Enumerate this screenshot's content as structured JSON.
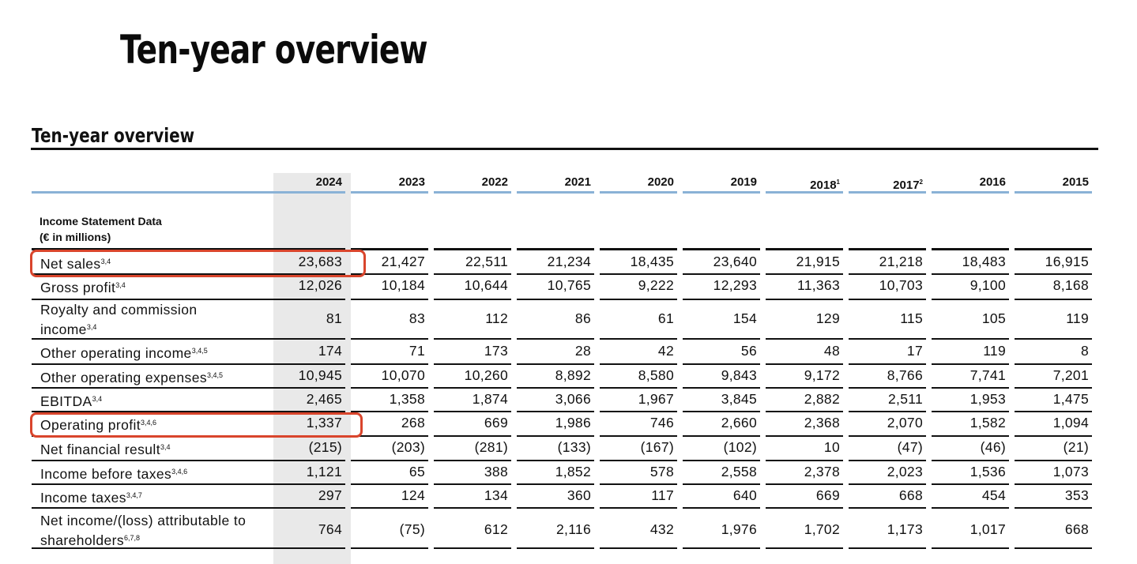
{
  "page": {
    "title": "Ten-year overview"
  },
  "table": {
    "caption": "Ten-year overview",
    "section_title": "Income Statement Data",
    "section_unit": "(€ in millions)",
    "years": [
      {
        "label": "2024",
        "note": ""
      },
      {
        "label": "2023",
        "note": ""
      },
      {
        "label": "2022",
        "note": ""
      },
      {
        "label": "2021",
        "note": ""
      },
      {
        "label": "2020",
        "note": ""
      },
      {
        "label": "2019",
        "note": ""
      },
      {
        "label": "2018",
        "note": "1"
      },
      {
        "label": "2017",
        "note": "2"
      },
      {
        "label": "2016",
        "note": ""
      },
      {
        "label": "2015",
        "note": ""
      }
    ],
    "rows": [
      {
        "label": "Net sales",
        "notes": "3,4",
        "values": [
          "23,683",
          "21,427",
          "22,511",
          "21,234",
          "18,435",
          "23,640",
          "21,915",
          "21,218",
          "18,483",
          "16,915"
        ]
      },
      {
        "label": "Gross profit",
        "notes": "3,4",
        "values": [
          "12,026",
          "10,184",
          "10,644",
          "10,765",
          "9,222",
          "12,293",
          "11,363",
          "10,703",
          "9,100",
          "8,168"
        ]
      },
      {
        "label": "Royalty and commission income",
        "notes": "3,4",
        "values": [
          "81",
          "83",
          "112",
          "86",
          "61",
          "154",
          "129",
          "115",
          "105",
          "119"
        ]
      },
      {
        "label": "Other operating income",
        "notes": "3,4,5",
        "values": [
          "174",
          "71",
          "173",
          "28",
          "42",
          "56",
          "48",
          "17",
          "119",
          "8"
        ]
      },
      {
        "label": "Other operating expenses",
        "notes": "3,4,5",
        "values": [
          "10,945",
          "10,070",
          "10,260",
          "8,892",
          "8,580",
          "9,843",
          "9,172",
          "8,766",
          "7,741",
          "7,201"
        ]
      },
      {
        "label": "EBITDA",
        "notes": "3,4",
        "values": [
          "2,465",
          "1,358",
          "1,874",
          "3,066",
          "1,967",
          "3,845",
          "2,882",
          "2,511",
          "1,953",
          "1,475"
        ]
      },
      {
        "label": "Operating profit",
        "notes": "3,4,6",
        "values": [
          "1,337",
          "268",
          "669",
          "1,986",
          "746",
          "2,660",
          "2,368",
          "2,070",
          "1,582",
          "1,094"
        ]
      },
      {
        "label": "Net financial result",
        "notes": "3,4",
        "values": [
          "(215)",
          "(203)",
          "(281)",
          "(133)",
          "(167)",
          "(102)",
          "10",
          "(47)",
          "(46)",
          "(21)"
        ]
      },
      {
        "label": "Income before taxes",
        "notes": "3,4,6",
        "values": [
          "1,121",
          "65",
          "388",
          "1,852",
          "578",
          "2,558",
          "2,378",
          "2,023",
          "1,536",
          "1,073"
        ]
      },
      {
        "label": "Income taxes",
        "notes": "3,4,7",
        "values": [
          "297",
          "124",
          "134",
          "360",
          "117",
          "640",
          "669",
          "668",
          "454",
          "353"
        ]
      },
      {
        "label": "Net income/(loss) attributable to shareholders",
        "notes": "6,7,8",
        "values": [
          "764",
          "(75)",
          "612",
          "2,116",
          "432",
          "1,976",
          "1,702",
          "1,173",
          "1,017",
          "668"
        ]
      }
    ]
  },
  "colors": {
    "header_rule": "#8ab2d6",
    "highlight_column": "#e9e9e9",
    "callout": "#d9452c",
    "rule": "#111111"
  }
}
